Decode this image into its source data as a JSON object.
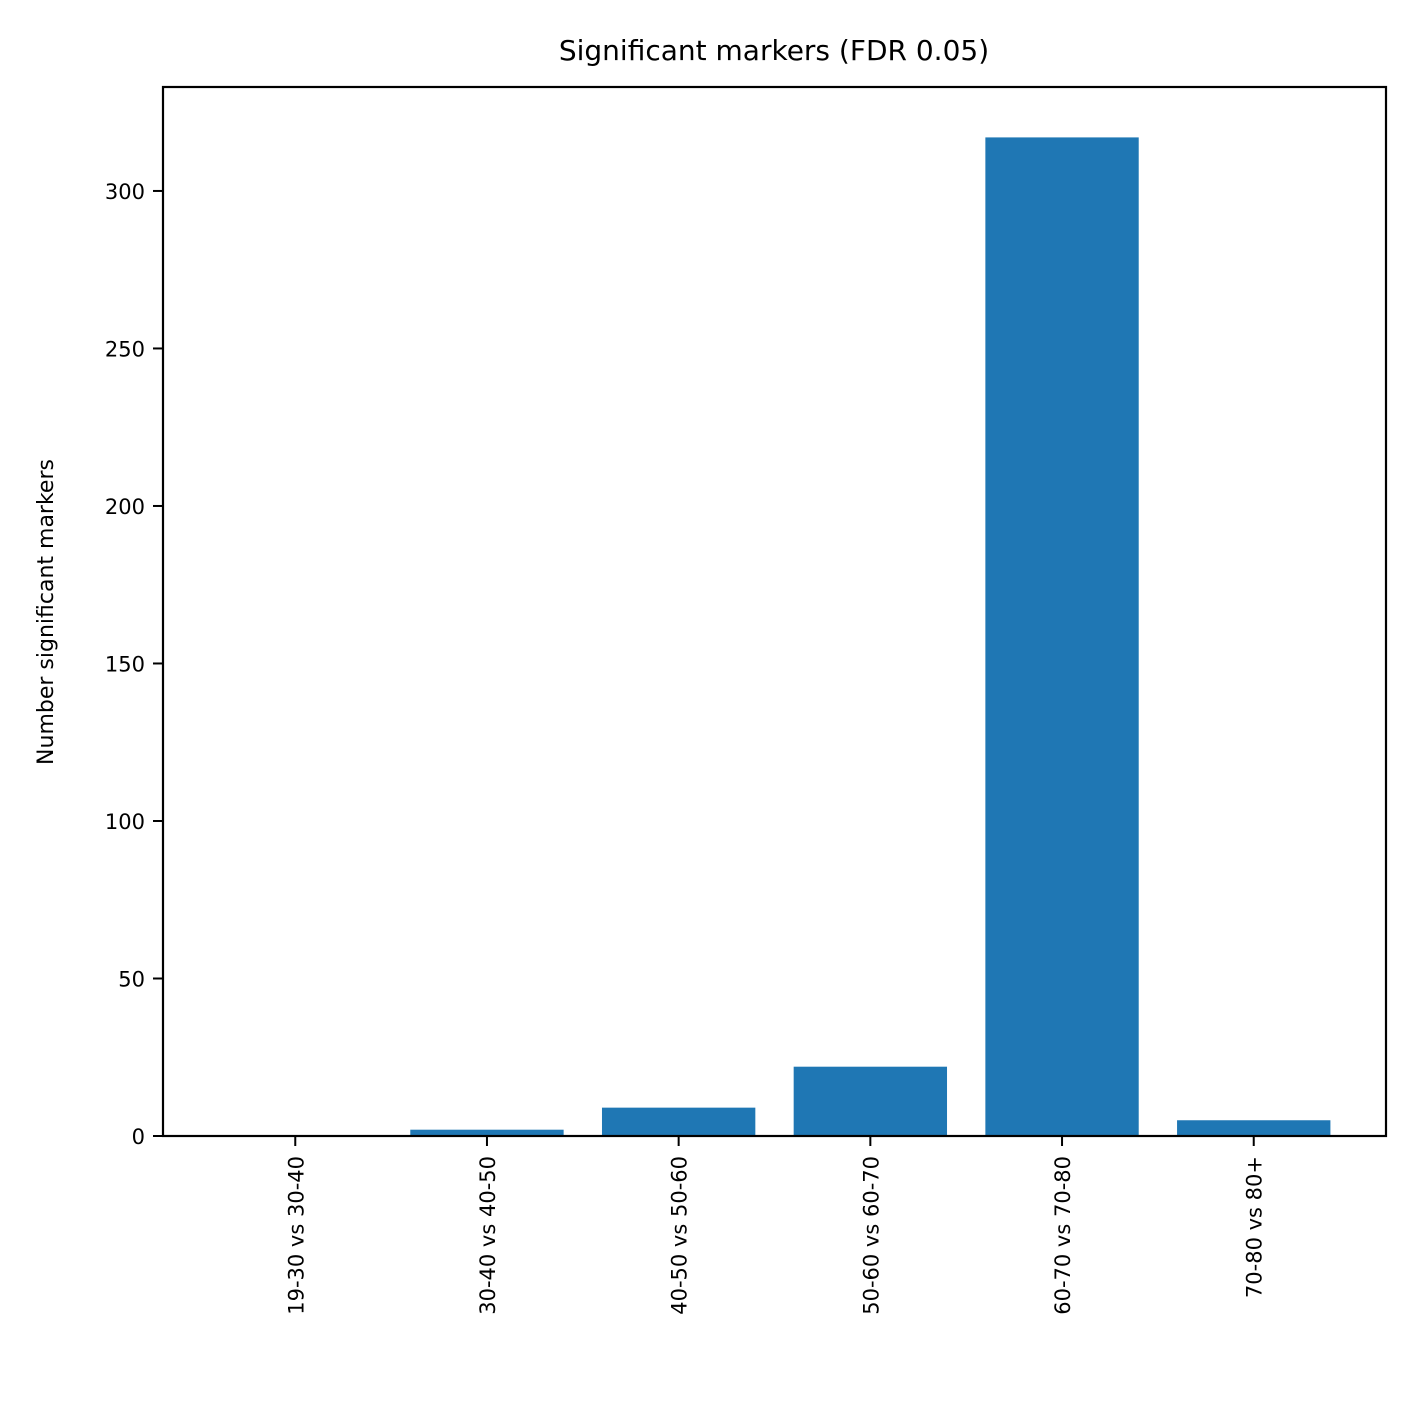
{
  "chart_data": {
    "type": "bar",
    "title": "Significant markers (FDR 0.05)",
    "xlabel": "",
    "ylabel": "Number significant markers",
    "categories": [
      "19-30 vs 30-40",
      "30-40 vs 40-50",
      "40-50 vs 50-60",
      "50-60 vs 60-70",
      "60-70 vs 70-80",
      "70-80 vs 80+"
    ],
    "values": [
      0,
      2,
      9,
      22,
      317,
      5
    ],
    "ylim": [
      0,
      333
    ],
    "yticks": [
      0,
      50,
      100,
      150,
      200,
      250,
      300
    ],
    "grid": false,
    "bar_color": "#1f77b4"
  }
}
